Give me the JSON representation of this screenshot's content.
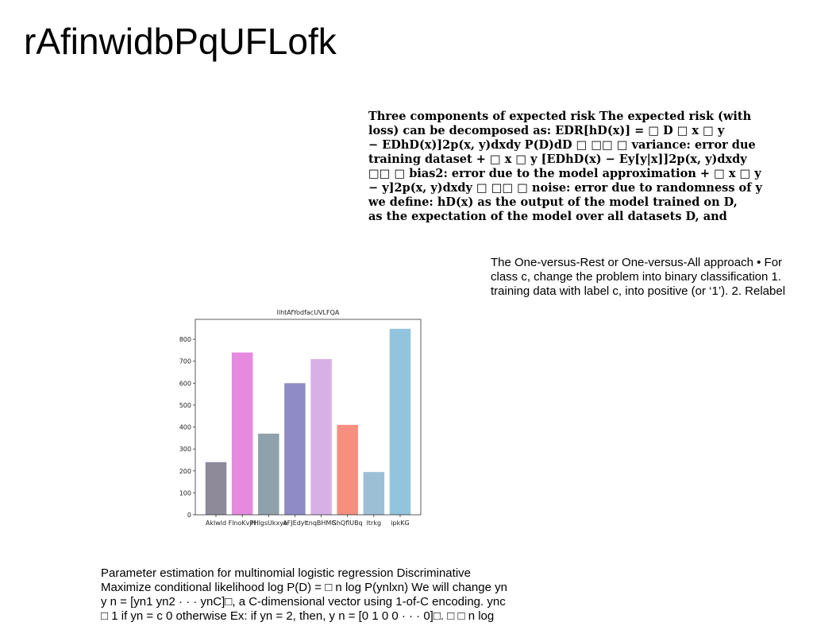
{
  "header": {
    "title": "rAfinwidbPqUFLofk"
  },
  "blocks": [
    {
      "lines": [
        "Three components of expected risk The expected risk (with",
        "loss) can be decomposed as: EDR[hD(x)] = □ D □ x □ y",
        "− EDhD(x)]2p(x, y)dxdy P(D)dD □ □□ □ variance: error due",
        "training dataset + □ x □ y [EDhD(x) − Ey[y|x]]2p(x, y)dxdy",
        "□□ □ bias2: error due to the model approximation + □ x □ y",
        "− y]2p(x, y)dxdy □ □□ □ noise: error due to randomness of y",
        "we define: hD(x) as the output of the model trained on D,",
        "as the expectation of the model over all datasets D, and"
      ]
    },
    {
      "lines": [
        "The One-versus-Rest or One-versus-All approach • For",
        "class c, change the problem into binary classification 1.",
        "training data with label c, into positive (or ‘1’). 2. Relabel"
      ]
    },
    {
      "lines": [
        "Parameter estimation for multinomial logistic regression Discriminative",
        "Maximize conditional likelihood log P(D) = □ n log P(ynlxn) We will change yn",
        "y n = [yn1 yn2 · · · ynC]□, a C-dimensional vector using 1-of-C encoding. ync",
        "□ 1 if yn = c 0 otherwise Ex: if yn = 2, then, y n = [0 1 0 0 · · · 0]□. □ □ n log"
      ]
    }
  ],
  "chart_data": {
    "type": "bar",
    "title": "llhtAfYodfacUVLFQA",
    "categories": [
      "Aklwld",
      "FlnoKvjH",
      "PHlgsUkxye",
      "AFJEdyt",
      "tnqBHMG",
      "ShQflUBq",
      "ltrkg",
      "ipkKG"
    ],
    "values": [
      240,
      740,
      370,
      600,
      710,
      410,
      195,
      848
    ],
    "colors": [
      "#8f8a9a",
      "#e68ae0",
      "#8fa1ab",
      "#8f8bc4",
      "#d9b0e6",
      "#f78f80",
      "#9dbfd6",
      "#92c4de"
    ],
    "ylim": [
      0,
      891
    ],
    "yticks": [
      0,
      100,
      200,
      300,
      400,
      500,
      600,
      700,
      800
    ]
  }
}
